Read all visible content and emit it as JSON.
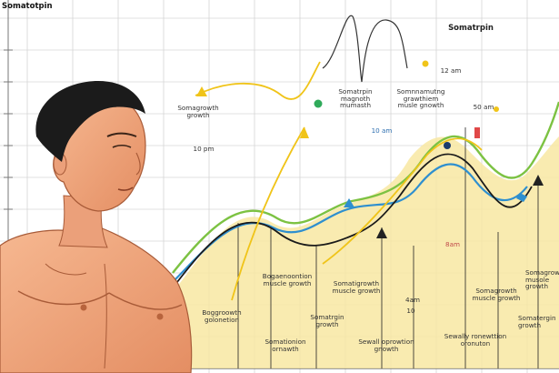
{
  "header": {
    "title": "Somatotpin"
  },
  "labels": {
    "top_right": "Somatrpin",
    "upper_left": "Somagrowth\ngrowth",
    "upper_left_unit": "10 pm",
    "mid_upper_1": "Somatrpin\nmagnoth\nmumasth",
    "mid_upper_2": "Somnnamutng\ngrawthiem\nmusle gnowth",
    "mid_unit_1": "10 am",
    "mid_unit_2": "12 am",
    "mid_unit_3": "50 am",
    "lower_1": "Bogaenoontion\nmuscle growth",
    "lower_2": "Somatigrowth\nmuscle growth",
    "lower_3": "Somagrowth\nmuscle growth",
    "lower_4": "Somagrowth\nmusole growth",
    "bottom_1": "Boggroowth\ngolonetion",
    "bottom_2": "Somatrgin\ngrowth",
    "bottom_3": "Somationion\nornawth",
    "bottom_4": "Sewall oprowtion\ngnowth",
    "bottom_5": "Sewally ronewttion\noronuton",
    "bottom_6": "Somatergin\ngrowth",
    "tiny_1": "4am",
    "tiny_2": "8am",
    "tiny_3": "10"
  },
  "colors": {
    "grid": "#d4d4d4",
    "fill": "#f8e7a2",
    "yellow_line": "#f0c419",
    "green_line": "#7cc242",
    "blue_line": "#2e8fcf",
    "black_line": "#1a1a1a",
    "skin": "#f2a77f",
    "hair": "#1b1b1b"
  }
}
